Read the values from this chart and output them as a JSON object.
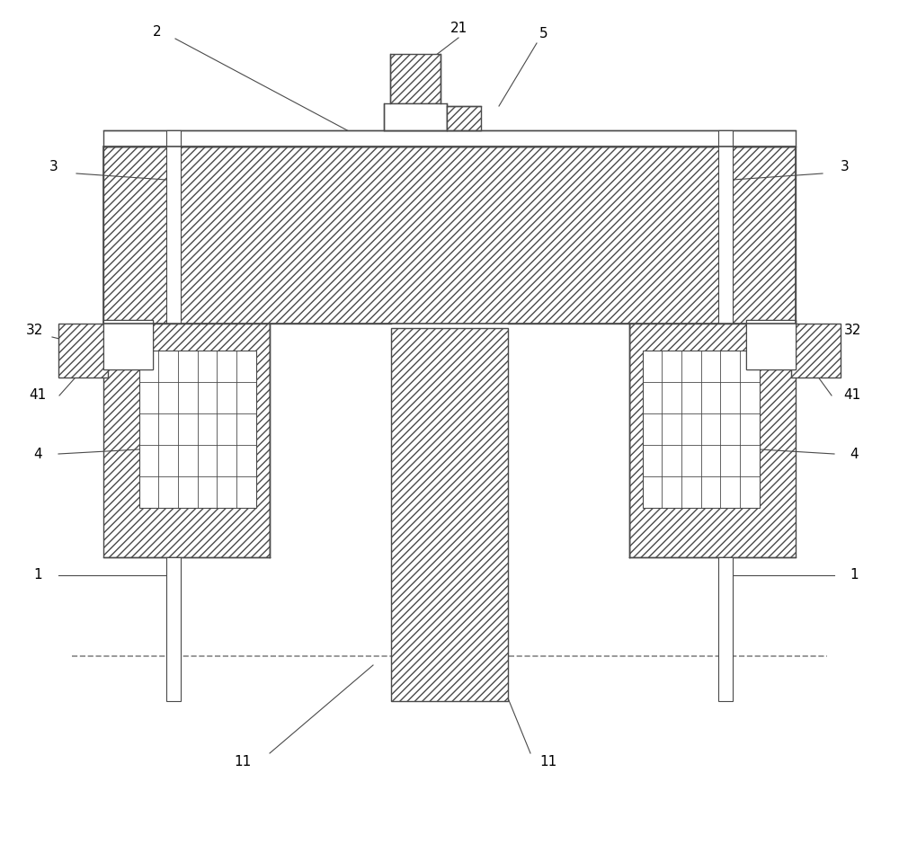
{
  "bg_color": "#ffffff",
  "line_color": "#4a4a4a",
  "fig_width": 10.0,
  "fig_height": 9.39,
  "hatch_dense": "////",
  "hatch_grid": "",
  "lw_main": 1.2,
  "lw_thin": 0.8,
  "lw_grid": 0.6
}
